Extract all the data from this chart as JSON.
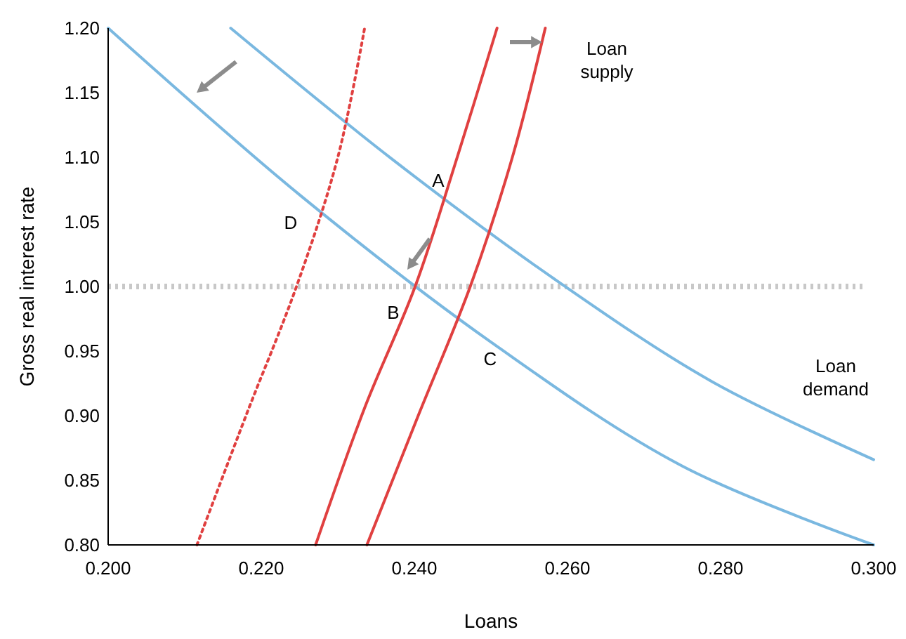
{
  "chart_data": {
    "type": "line",
    "xlabel": "Loans",
    "ylabel": "Gross real interest rate",
    "xlim": [
      0.2,
      0.3
    ],
    "ylim": [
      0.8,
      1.2
    ],
    "xticks": [
      {
        "value": 0.2,
        "label": "0.200"
      },
      {
        "value": 0.22,
        "label": "0.220"
      },
      {
        "value": 0.24,
        "label": "0.240"
      },
      {
        "value": 0.26,
        "label": "0.260"
      },
      {
        "value": 0.28,
        "label": "0.280"
      },
      {
        "value": 0.3,
        "label": "0.300"
      }
    ],
    "yticks": [
      {
        "value": 0.8,
        "label": "0.80"
      },
      {
        "value": 0.85,
        "label": "0.85"
      },
      {
        "value": 0.9,
        "label": "0.90"
      },
      {
        "value": 0.95,
        "label": "0.95"
      },
      {
        "value": 1.0,
        "label": "1.00"
      },
      {
        "value": 1.05,
        "label": "1.05"
      },
      {
        "value": 1.1,
        "label": "1.10"
      },
      {
        "value": 1.15,
        "label": "1.15"
      },
      {
        "value": 1.2,
        "label": "1.20"
      }
    ],
    "grid": false,
    "marker": "none",
    "series": [
      {
        "color": "#7ab8e0",
        "x": [
          0.2,
          0.225,
          0.25,
          0.275,
          0.3
        ],
        "values": [
          1.2,
          1.071,
          0.957,
          0.861,
          0.8
        ]
      },
      {
        "color": "#7ab8e0",
        "x": [
          0.216,
          0.237,
          0.258,
          0.279,
          0.3
        ],
        "values": [
          1.2,
          1.099,
          1.007,
          0.926,
          0.866
        ]
      },
      {
        "color": "#e04040",
        "x": [
          0.2271,
          0.2335,
          0.2401,
          0.2457,
          0.2508
        ],
        "values": [
          0.8,
          0.906,
          1.0,
          1.102,
          1.2
        ]
      },
      {
        "color": "#e04040",
        "x": [
          0.2338,
          0.2405,
          0.2473,
          0.2528,
          0.2571
        ],
        "values": [
          0.8,
          0.9,
          1.0,
          1.1,
          1.2
        ]
      },
      {
        "color": "#e04040",
        "line_style": "dotted",
        "x": [
          0.2116,
          0.218,
          0.2246,
          0.23,
          0.2335
        ],
        "values": [
          0.8,
          0.9,
          1.0,
          1.1,
          1.2
        ]
      }
    ],
    "ref_lines": [
      {
        "axis": "y",
        "value": 1.0,
        "color": "#c8c8c8",
        "line_style": "dotted"
      }
    ],
    "annotations": [
      "A",
      "B",
      "C",
      "D",
      "Loan supply",
      "Loan demand"
    ]
  }
}
